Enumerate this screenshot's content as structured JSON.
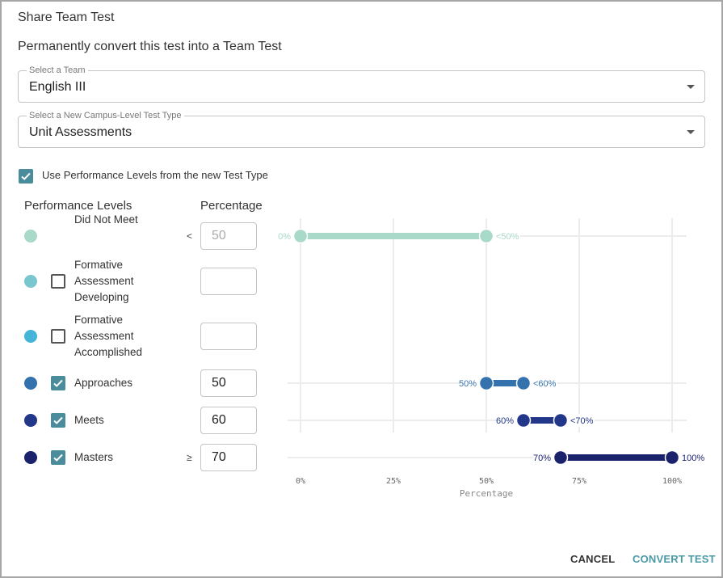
{
  "dialog": {
    "title": "Share Team Test",
    "subtitle": "Permanently convert this test into a Team Test",
    "team_select": {
      "label": "Select a Team",
      "value": "English III"
    },
    "type_select": {
      "label": "Select a New Campus-Level Test Type",
      "value": "Unit Assessments"
    },
    "use_levels": {
      "label": "Use Performance Levels from the new Test Type",
      "checked": true
    },
    "columns": {
      "levels": "Performance Levels",
      "percentage": "Percentage"
    },
    "levels": [
      {
        "name": "Did Not Meet",
        "color": "#a8d9c9",
        "checkbox": null,
        "symbol": "<",
        "value": "50",
        "disabled": true
      },
      {
        "name": "Formative Assessment Developing",
        "color": "#7ac6cf",
        "checkbox": false,
        "symbol": "",
        "value": "",
        "disabled": false
      },
      {
        "name": "Formative Assessment Accomplished",
        "color": "#45b4d6",
        "checkbox": false,
        "symbol": "",
        "value": "",
        "disabled": false
      },
      {
        "name": "Approaches",
        "color": "#3472ad",
        "checkbox": true,
        "symbol": "",
        "value": "50",
        "disabled": false
      },
      {
        "name": "Meets",
        "color": "#22368a",
        "checkbox": true,
        "symbol": "",
        "value": "60",
        "disabled": false
      },
      {
        "name": "Masters",
        "color": "#1a226b",
        "checkbox": true,
        "symbol": "≥",
        "value": "70",
        "disabled": false
      }
    ],
    "cancel_label": "CANCEL",
    "convert_label": "CONVERT TEST",
    "accent_color": "#4a9aa5",
    "checkbox_color": "#4a8c9b"
  },
  "chart_data": {
    "type": "range",
    "xlabel": "Percentage",
    "xlim": [
      0,
      100
    ],
    "xticks": [
      "0%",
      "25%",
      "50%",
      "75%",
      "100%"
    ],
    "grid": true,
    "series": [
      {
        "level": "Did Not Meet",
        "start": 0,
        "end": 50,
        "start_label": "0%",
        "end_label": "<50%",
        "color": "#a8d9c9"
      },
      {
        "level": "Approaches",
        "start": 50,
        "end": 60,
        "start_label": "50%",
        "end_label": "<60%",
        "color": "#3472ad"
      },
      {
        "level": "Meets",
        "start": 60,
        "end": 70,
        "start_label": "60%",
        "end_label": "<70%",
        "color": "#22368a"
      },
      {
        "level": "Masters",
        "start": 70,
        "end": 100,
        "start_label": "70%",
        "end_label": "100%",
        "color": "#1a226b"
      }
    ]
  }
}
